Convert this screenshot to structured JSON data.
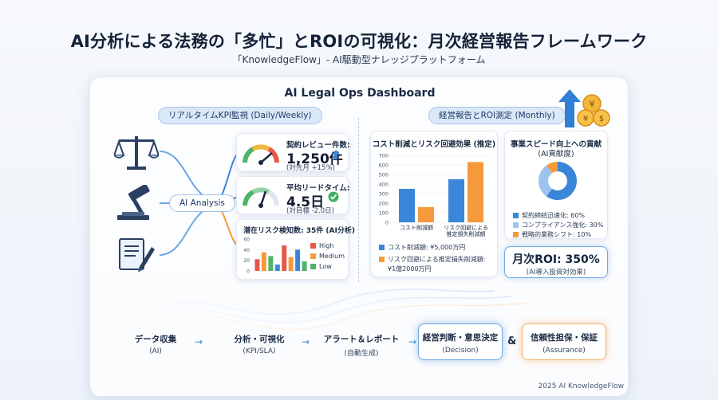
{
  "header": {
    "title": "AI分析による法務の「多忙」とROIの可視化：月次経営報告フレームワーク",
    "subtitle": "「KnowledgeFlow」- AI駆動型ナレッジプラットフォーム"
  },
  "dashboard": {
    "title": "AI Legal Ops Dashboard",
    "left_section": "リアルタイムKPI監視 (Daily/Weekly)",
    "right_section": "経営報告とROI測定 (Monthly)",
    "ai_analysis": "AI Analysis"
  },
  "kpis": [
    {
      "label": "契約レビュー件数:",
      "value": "1,250件",
      "note": "(対先月 +15%)",
      "gauge_level": 0.8
    },
    {
      "label": "平均リードタイム:",
      "value": "4.5日",
      "note": "(対目標 -2.0日)",
      "gauge_level": 0.55
    }
  ],
  "risk_card": {
    "title": "潜在リスク検知数: 35件 (AI分析)",
    "legend": [
      {
        "label": "High",
        "color": "#e8574a"
      },
      {
        "label": "Medium",
        "color": "#f59a3c"
      },
      {
        "label": "Low",
        "color": "#4fb36a"
      }
    ],
    "y_ticks": [
      "60",
      "40",
      "20",
      "0"
    ],
    "bars": [
      {
        "color": "#e8574a",
        "value": 22
      },
      {
        "color": "#f59a3c",
        "value": 35
      },
      {
        "color": "#4fb36a",
        "value": 28
      },
      {
        "color": "#3a86d8",
        "value": 12
      },
      {
        "color": "#e8574a",
        "value": 48
      },
      {
        "color": "#f59a3c",
        "value": 26
      },
      {
        "color": "#3a86d8",
        "value": 40
      },
      {
        "color": "#4fb36a",
        "value": 18
      }
    ]
  },
  "cost_panel": {
    "title": "コスト削減とリスク回避効果 (推定)",
    "y_ticks": [
      "700",
      "600",
      "500",
      "400",
      "300",
      "200",
      "100",
      "0"
    ],
    "categories": [
      "コスト削減額",
      "リスク回避による\n推定損失削減額"
    ],
    "series": [
      {
        "color": "#3a86d8",
        "values": [
          350,
          450
        ]
      },
      {
        "color": "#f59a3c",
        "values": [
          160,
          630
        ]
      }
    ],
    "ymax": 700,
    "legend": [
      {
        "label": "コスト削減額: ¥5,000万円",
        "color": "#3a86d8"
      },
      {
        "label": "リスク回避による推定損失削減額:",
        "color": "#f59a3c"
      }
    ],
    "legend_extra": "¥1億2000万円"
  },
  "contrib_panel": {
    "title": "事業スピード向上への貢献",
    "subtitle": "(AI貢献度)",
    "slices": [
      {
        "label": "契約締結迅速化: 60%",
        "value": 60,
        "color": "#3a86d8"
      },
      {
        "label": "コンプライアンス強化: 30%",
        "value": 30,
        "color": "#9cc3ef"
      },
      {
        "label": "戦略的業務シフト: 10%",
        "value": 10,
        "color": "#f59a3c"
      }
    ]
  },
  "roi": {
    "value": "月次ROI: 350%",
    "note": "(AI導入投資対効果)"
  },
  "flow": [
    {
      "title": "データ収集",
      "sub": "(AI)"
    },
    {
      "title": "分析・可視化",
      "sub": "(KPI/SLA)"
    },
    {
      "title": "アラート＆レポート",
      "sub": "(自動生成)"
    }
  ],
  "decision": {
    "title": "経営判断・意思決定",
    "sub": "(Decision)"
  },
  "amp": "&",
  "assurance": {
    "title": "信頼性担保・保証",
    "sub": "(Assurance)"
  },
  "footer": "2025 AI KnowledgeFlow",
  "icons": {
    "scale": "scale-icon",
    "gavel": "gavel-icon",
    "document": "document-icon",
    "money": "money-growth-icon"
  }
}
